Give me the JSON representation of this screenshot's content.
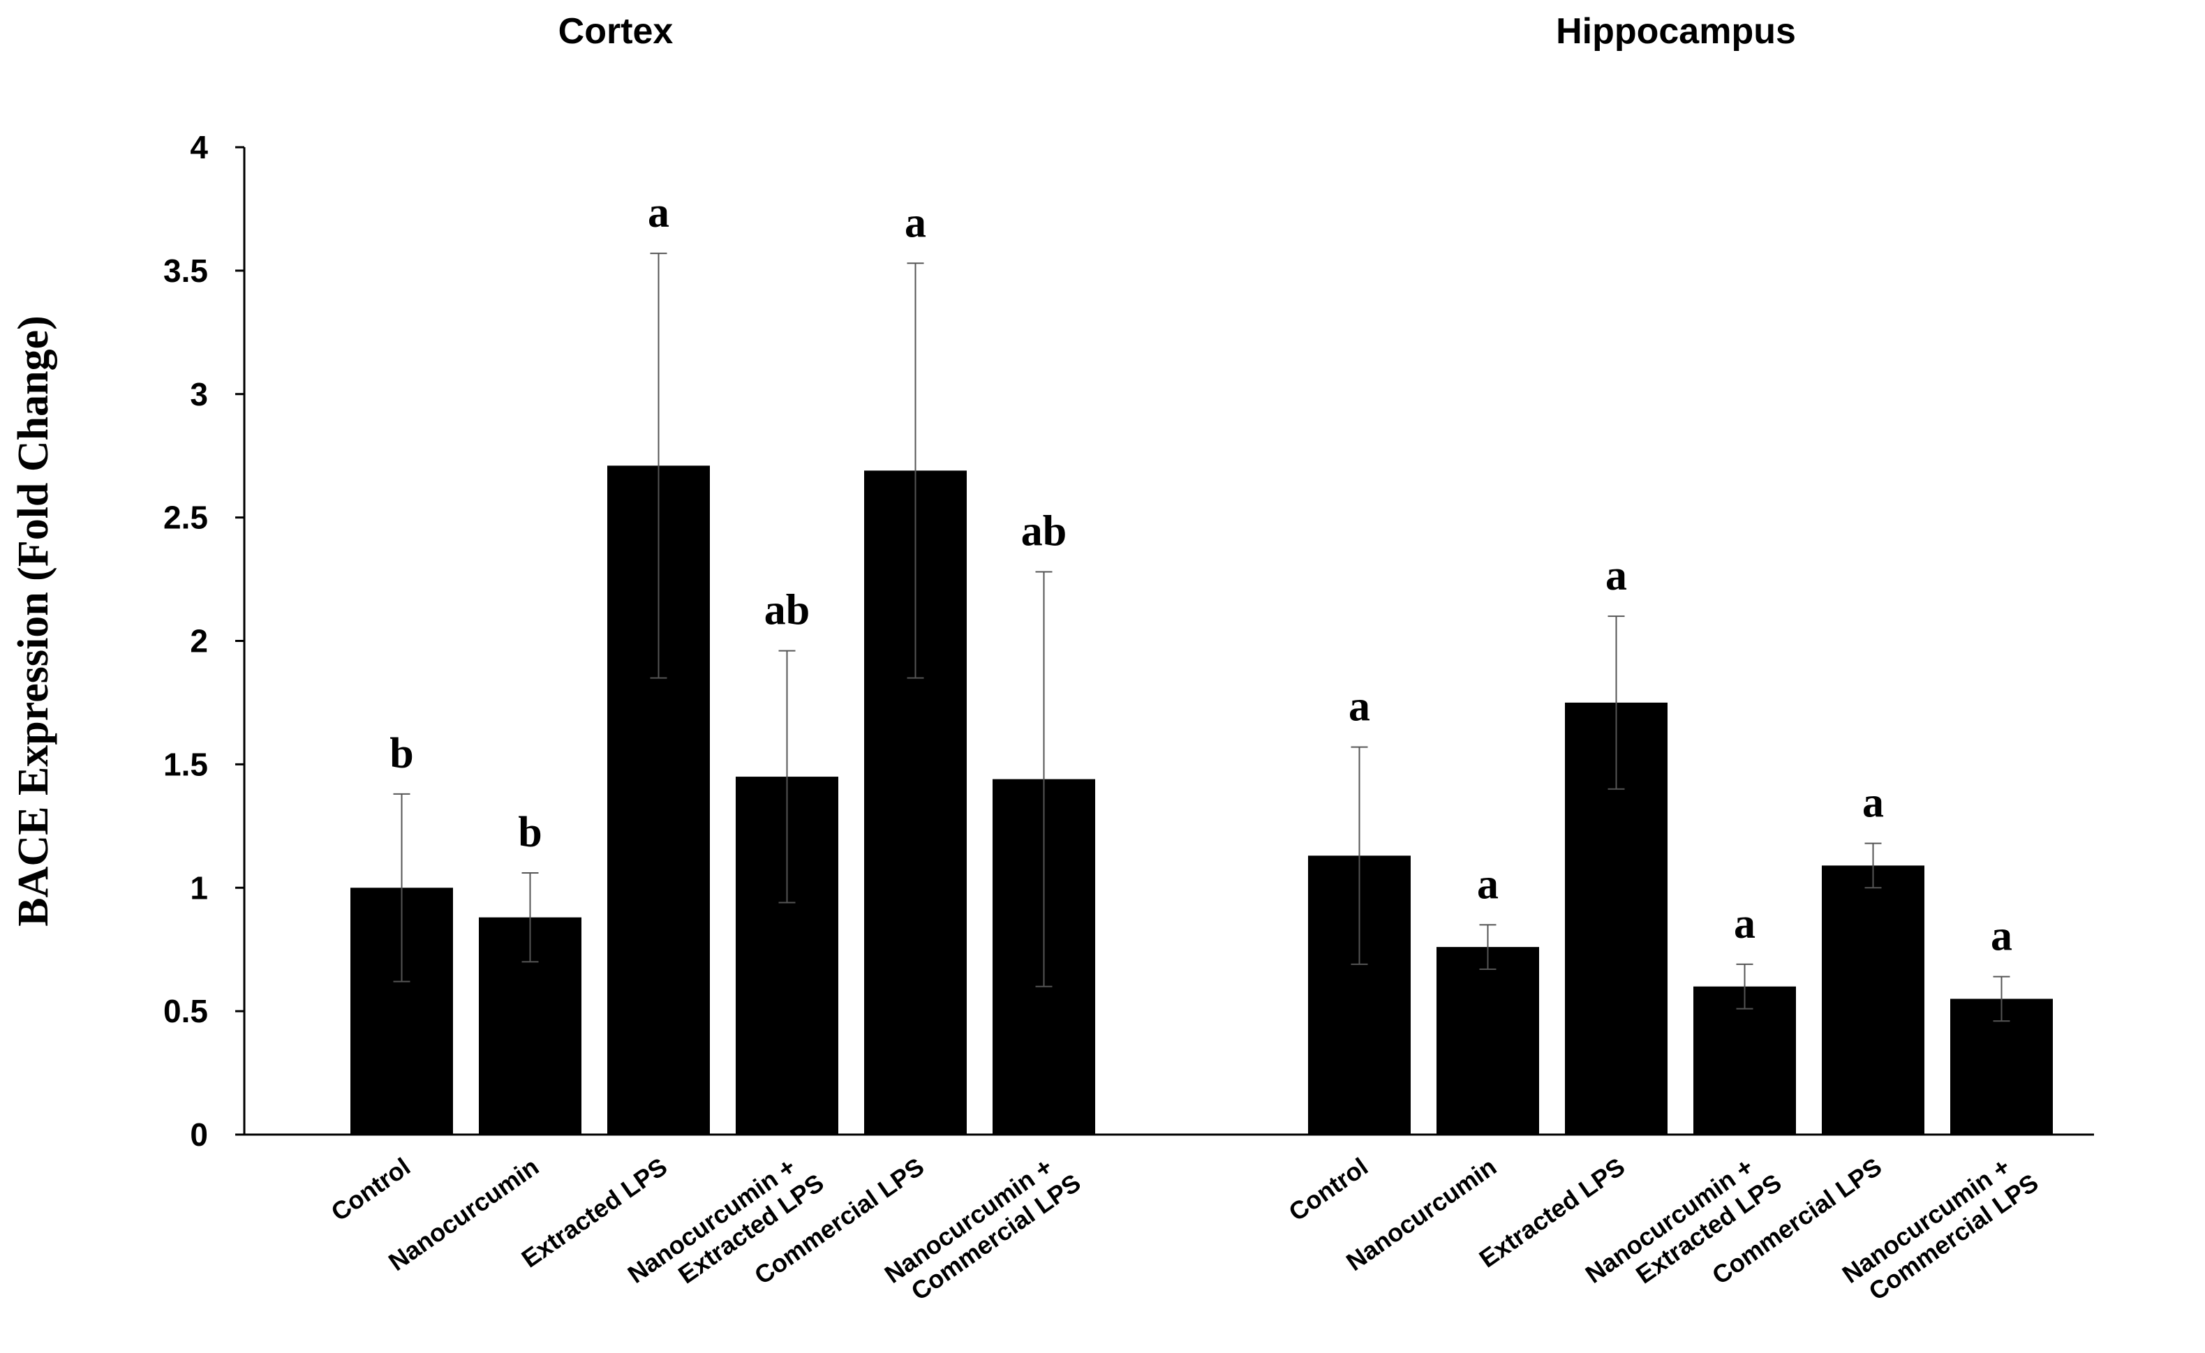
{
  "chart_data": {
    "type": "bar",
    "ylabel": "BACE  Expression (Fold Change)",
    "ylim": [
      0,
      4
    ],
    "yticks": [
      0,
      0.5,
      1,
      1.5,
      2,
      2.5,
      3,
      3.5,
      4
    ],
    "ytick_labels": [
      "0",
      "0.5",
      "1",
      "1.5",
      "2",
      "2.5",
      "3",
      "3.5",
      "4"
    ],
    "bar_color": "#000000",
    "groups": [
      {
        "title": "Cortex",
        "categories": [
          [
            "Control"
          ],
          [
            "Nanocurcumin"
          ],
          [
            "Extracted LPS"
          ],
          [
            "Nanocurcumin +",
            "Extracted LPS"
          ],
          [
            "Commercial LPS"
          ],
          [
            "Nanocurcumin +",
            "Commercial LPS"
          ]
        ],
        "values": [
          1.0,
          0.88,
          2.71,
          1.45,
          2.69,
          1.44
        ],
        "errors": [
          0.38,
          0.18,
          0.86,
          0.51,
          0.84,
          0.84
        ],
        "significance": [
          "b",
          "b",
          "a",
          "ab",
          "a",
          "ab"
        ]
      },
      {
        "title": "Hippocampus",
        "categories": [
          [
            "Control"
          ],
          [
            "Nanocurcumin"
          ],
          [
            "Extracted LPS"
          ],
          [
            "Nanocurcumin +",
            "Extracted LPS"
          ],
          [
            "Commercial LPS"
          ],
          [
            "Nanocurcumin +",
            "Commercial LPS"
          ]
        ],
        "values": [
          1.13,
          0.76,
          1.75,
          0.6,
          1.09,
          0.55
        ],
        "errors": [
          0.44,
          0.09,
          0.35,
          0.09,
          0.09,
          0.09
        ],
        "significance": [
          "a",
          "a",
          "a",
          "a",
          "a",
          "a"
        ]
      }
    ]
  }
}
